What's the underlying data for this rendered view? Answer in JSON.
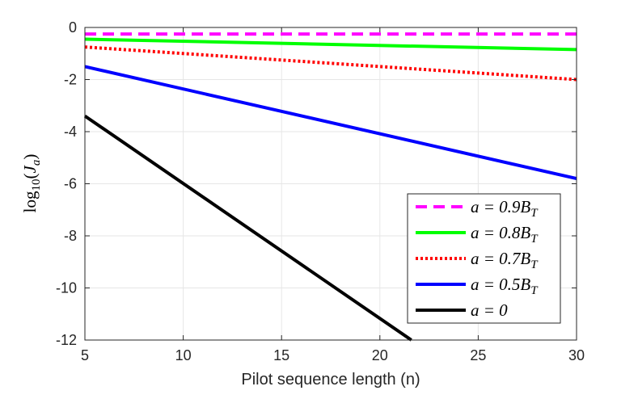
{
  "chart_data": {
    "type": "line",
    "title": "",
    "xlabel": "Pilot sequence length (n)",
    "ylabel": "log10(Ja)",
    "ylabel_parts": {
      "base": "log",
      "sub": "10",
      "open": "(",
      "var": "J",
      "var_sub": "a",
      "close": ")"
    },
    "xlim": [
      5,
      30
    ],
    "ylim": [
      -12,
      0
    ],
    "xticks": [
      5,
      10,
      15,
      20,
      25,
      30
    ],
    "xtick_labels": [
      "5",
      "10",
      "15",
      "20",
      "25",
      "30"
    ],
    "yticks": [
      0,
      -2,
      -4,
      -6,
      -8,
      -10,
      -12
    ],
    "ytick_labels": [
      "0",
      "-2",
      "-4",
      "-6",
      "-8",
      "-10",
      "-12"
    ],
    "grid": true,
    "legend_position": "bottom-right",
    "series": [
      {
        "name": "a = 0.9B_T",
        "label_main": "a = 0.9B",
        "label_sub": "T",
        "color": "#ff00ff",
        "style": "dashed",
        "x": [
          5,
          30
        ],
        "y": [
          -0.25,
          -0.25
        ]
      },
      {
        "name": "a = 0.8B_T",
        "label_main": "a = 0.8B",
        "label_sub": "T",
        "color": "#00ff00",
        "style": "solid",
        "x": [
          5,
          30
        ],
        "y": [
          -0.45,
          -0.85
        ]
      },
      {
        "name": "a = 0.7B_T",
        "label_main": "a = 0.7B",
        "label_sub": "T",
        "color": "#ff0000",
        "style": "dotted",
        "x": [
          5,
          30
        ],
        "y": [
          -0.75,
          -2.0
        ]
      },
      {
        "name": "a = 0.5B_T",
        "label_main": "a = 0.5B",
        "label_sub": "T",
        "color": "#0000ff",
        "style": "solid",
        "x": [
          5,
          30
        ],
        "y": [
          -1.5,
          -5.8
        ]
      },
      {
        "name": "a = 0",
        "label_main": "a = 0",
        "label_sub": "",
        "color": "#000000",
        "style": "solid",
        "x": [
          5,
          21.6
        ],
        "y": [
          -3.4,
          -12.0
        ]
      }
    ]
  }
}
